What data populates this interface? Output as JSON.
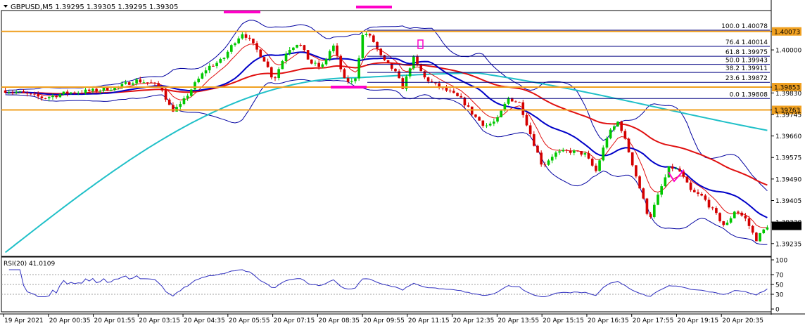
{
  "header": {
    "symbol_line": "GBPUSD,M5  1.39295 1.39305 1.39295 1.39305",
    "menu_icon": "triangle-down-icon"
  },
  "chart_data": {
    "type": "candlestick",
    "symbol": "GBPUSD",
    "timeframe": "M5",
    "ohlc": {
      "open": 1.39295,
      "high": 1.39305,
      "low": 1.39295,
      "close": 1.39305
    },
    "price_range": [
      1.3919,
      1.4015
    ],
    "price_ticks": [
      {
        "value": 1.40073,
        "label": "1.40073",
        "highlight": true
      },
      {
        "value": 1.4,
        "label": "1.40000"
      },
      {
        "value": 1.39853,
        "label": "1.39853",
        "highlight": true
      },
      {
        "value": 1.3983,
        "label": "1.39830"
      },
      {
        "value": 1.39763,
        "label": "1.39763",
        "highlight": true
      },
      {
        "value": 1.39745,
        "label": "1.39745"
      },
      {
        "value": 1.3966,
        "label": "1.39660"
      },
      {
        "value": 1.39575,
        "label": "1.39575"
      },
      {
        "value": 1.3949,
        "label": "1.39490"
      },
      {
        "value": 1.39405,
        "label": "1.39405"
      },
      {
        "value": 1.3932,
        "label": "1.39320"
      },
      {
        "value": 1.39235,
        "label": "1.39235"
      }
    ],
    "current_price": {
      "value": 1.39305,
      "label": "1.39305"
    },
    "time_labels": [
      "19 Apr 2021",
      "20 Apr 00:35",
      "20 Apr 01:55",
      "20 Apr 03:15",
      "20 Apr 04:35",
      "20 Apr 05:55",
      "20 Apr 07:15",
      "20 Apr 08:35",
      "20 Apr 09:55",
      "20 Apr 11:15",
      "20 Apr 12:35",
      "20 Apr 13:55",
      "20 Apr 15:15",
      "20 Apr 16:35",
      "20 Apr 17:55",
      "20 Apr 19:15",
      "20 Apr 20:35"
    ],
    "horizontal_levels": [
      {
        "value": 1.40073,
        "color": "#f0a020"
      },
      {
        "value": 1.39853,
        "color": "#f0a020"
      },
      {
        "value": 1.39763,
        "color": "#f0a020"
      }
    ],
    "fibonacci": {
      "color": "#000080",
      "levels": [
        {
          "pct": "100.0",
          "price": 1.40078,
          "label": "100.0 1.40078"
        },
        {
          "pct": "76.4",
          "price": 1.40014,
          "label": "76.4 1.40014"
        },
        {
          "pct": "61.8",
          "price": 1.39975,
          "label": "61.8 1.39975"
        },
        {
          "pct": "50.0",
          "price": 1.39943,
          "label": "50.0 1.39943"
        },
        {
          "pct": "38.2",
          "price": 1.39911,
          "label": "38.2 1.39911"
        },
        {
          "pct": "23.6",
          "price": 1.39872,
          "label": "23.6 1.39872"
        },
        {
          "pct": "0.0",
          "price": 1.39808,
          "label": "0.0 1.39808"
        }
      ]
    },
    "indicator_colors": {
      "bull_candle": "#00c800",
      "bear_candle": "#d40000",
      "ma_fast": "#0000c8",
      "ma_mid": "#e01010",
      "ma_slow": "#20c0c8",
      "bollinger": "#0000a0",
      "markers": "#ff00c8"
    },
    "rsi": {
      "label": "RSI(20) 41.0109",
      "period": 20,
      "current": 41.0109,
      "levels": [
        {
          "value": 100,
          "label": "100"
        },
        {
          "value": 70,
          "label": "70"
        },
        {
          "value": 50,
          "label": "50"
        },
        {
          "value": 30,
          "label": "30"
        },
        {
          "value": 0,
          "label": "0"
        }
      ],
      "color": "#3030c0"
    },
    "grid": false
  }
}
